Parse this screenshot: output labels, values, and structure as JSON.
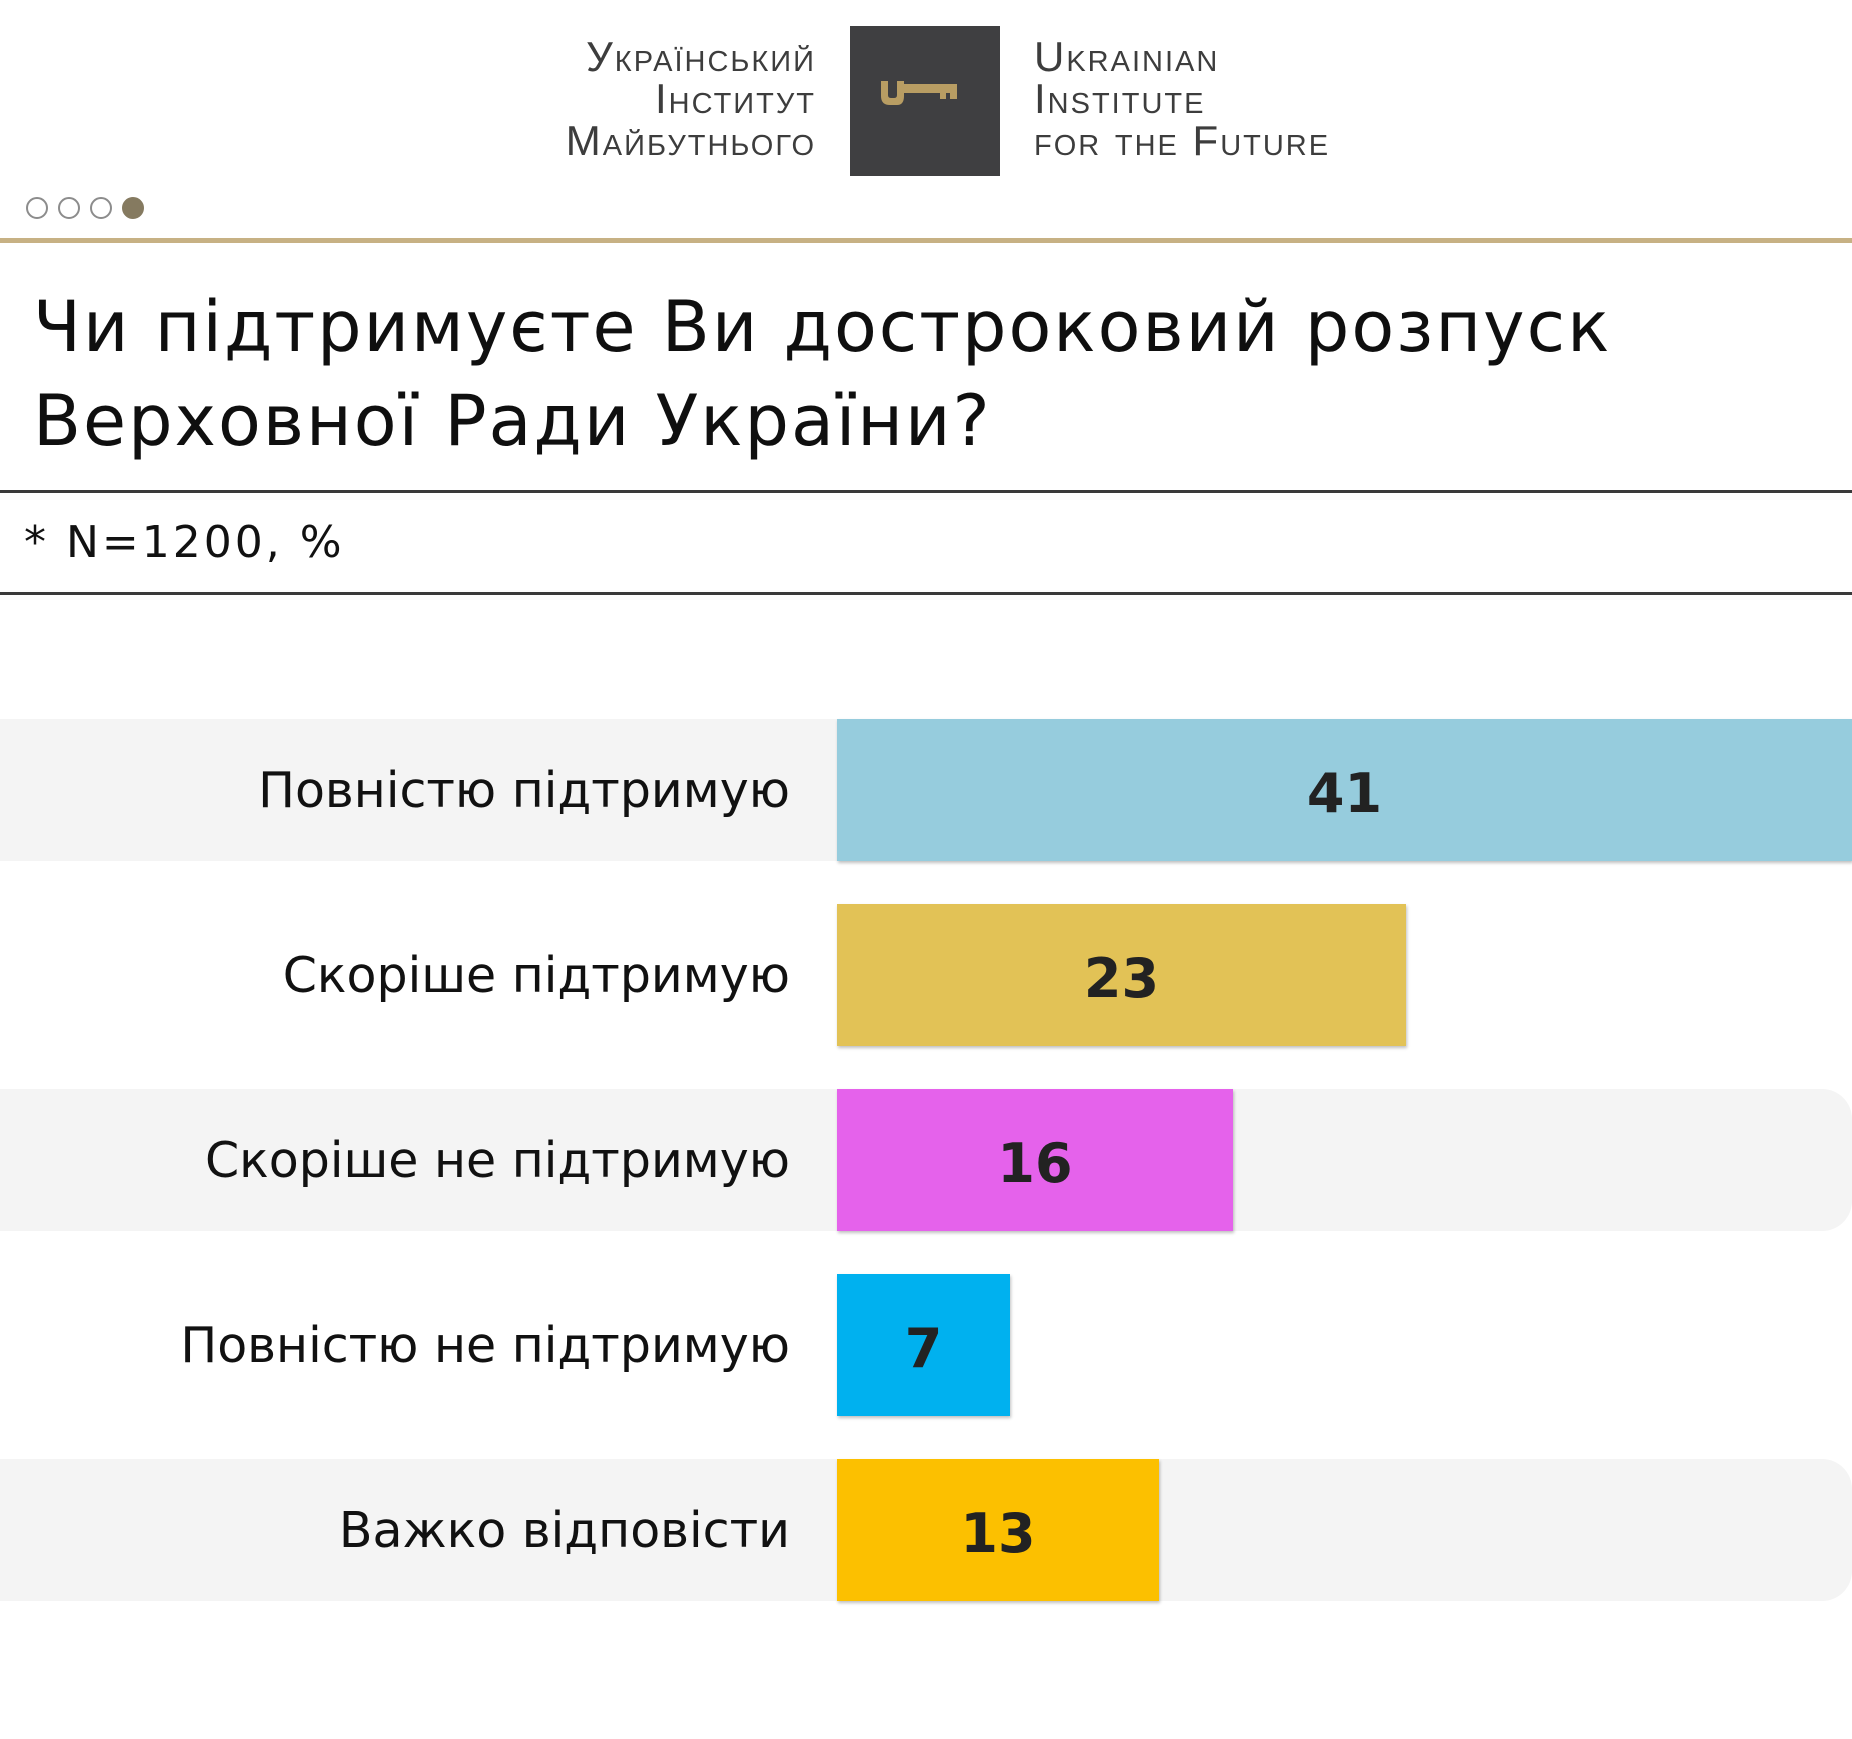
{
  "header": {
    "logo_ua_lines": [
      "Український",
      "Інститут",
      "Майбутнього"
    ],
    "logo_en_lines": [
      "Ukrainian",
      "Institute",
      "for the Future"
    ],
    "logo_icon": "key-icon",
    "pagination": {
      "total": 4,
      "active": 4
    }
  },
  "title": {
    "line1": "Чи підтримуєте Ви достроковий розпуск",
    "line2": "Верховної Ради України?"
  },
  "note": "* N=1200, %",
  "colors": {
    "gold_rule": "#c7b184",
    "logo_box": "#3f3f41",
    "key": "#b89d63",
    "row_bg": "#f4f4f4"
  },
  "chart_data": {
    "type": "bar",
    "orientation": "horizontal",
    "categories": [
      "Повністю підтримую",
      "Скоріше підтримую",
      "Скоріше не підтримую",
      "Повністю не підтримую",
      "Важко відповісти"
    ],
    "values": [
      41,
      23,
      16,
      7,
      13
    ],
    "value_labels": [
      "41",
      "23",
      "16",
      "7",
      "13"
    ],
    "bar_colors": [
      "#96ccdd",
      "#e2c256",
      "#e562eb",
      "#00b1ef",
      "#fcc000"
    ],
    "xlim": [
      0,
      41
    ],
    "grid": false,
    "legend": "none"
  }
}
